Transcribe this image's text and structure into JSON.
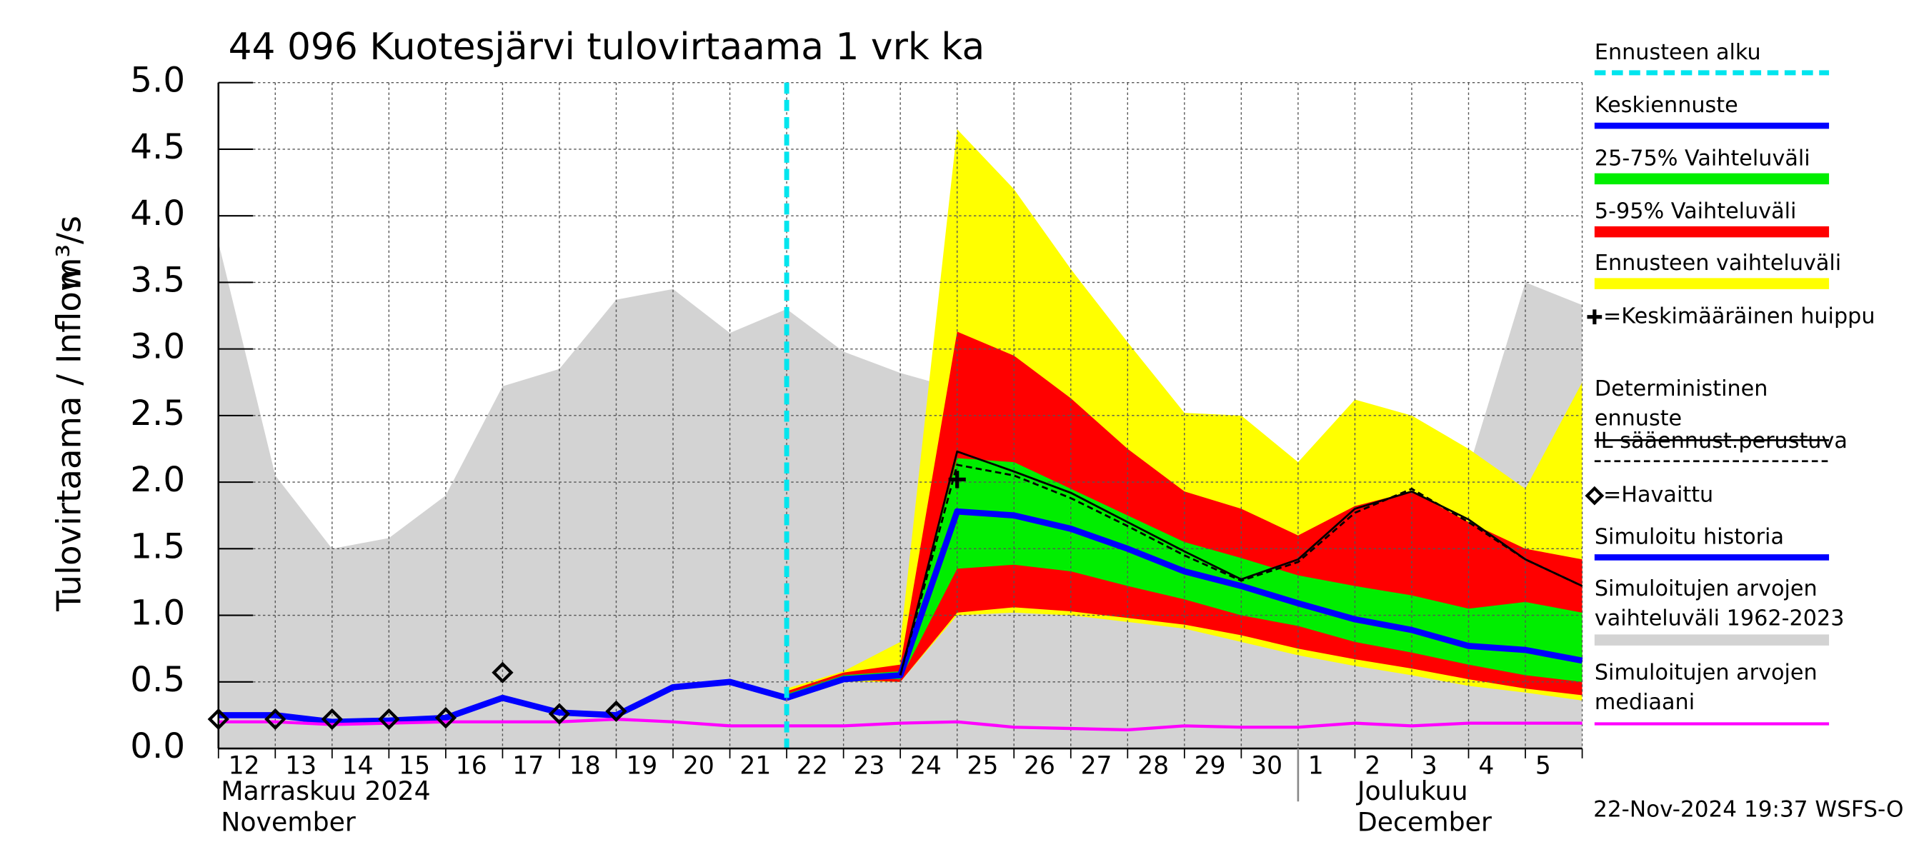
{
  "chart_data": {
    "type": "line",
    "title": "44 096 Kuotesjärvi tulovirtaama 1 vrk ka",
    "y_label": "Tulovirtaama / Inflow",
    "y_unit": "m³/s",
    "month_labels": [
      {
        "at": "12",
        "lines": [
          "Marraskuu 2024",
          "November"
        ]
      },
      {
        "at": "1",
        "lines": [
          "Joulukuu",
          "December"
        ]
      }
    ],
    "footer": "22-Nov-2024 19:37 WSFS-O",
    "categories": [
      "12",
      "13",
      "14",
      "15",
      "16",
      "17",
      "18",
      "19",
      "20",
      "21",
      "22",
      "23",
      "24",
      "25",
      "26",
      "27",
      "28",
      "29",
      "30",
      "1",
      "2",
      "3",
      "4",
      "5",
      null
    ],
    "ylim": [
      0,
      5
    ],
    "yticks": [
      {
        "value": 0,
        "label": "0.0"
      },
      0.5,
      {
        "value": 1,
        "label": "1.0"
      },
      1.5,
      {
        "value": 2,
        "label": "2.0"
      },
      2.5,
      {
        "value": 3,
        "label": "3.0"
      },
      3.5,
      {
        "value": 4,
        "label": "4.0"
      },
      4.5,
      {
        "value": 5,
        "label": "5.0"
      }
    ],
    "grid": true,
    "series": [
      {
        "name": "Ennusteen alku",
        "color": "#00e5ee",
        "kind": "vline",
        "at": "22"
      },
      {
        "name": "Keskiennuste",
        "color": "#0000ff",
        "kind": "line",
        "width": 5,
        "values": [
          null,
          null,
          null,
          null,
          null,
          null,
          null,
          null,
          null,
          null,
          0.38,
          0.52,
          0.55,
          1.78,
          1.75,
          1.65,
          1.5,
          1.33,
          1.22,
          1.09,
          0.97,
          0.89,
          0.77,
          0.74,
          0.66
        ]
      },
      {
        "name": "25-75% Vaihteluväli",
        "color": "#00ee00",
        "kind": "band",
        "upper": [
          null,
          null,
          null,
          null,
          null,
          null,
          null,
          null,
          null,
          null,
          0.41,
          0.55,
          0.58,
          2.18,
          2.15,
          1.95,
          1.75,
          1.55,
          1.43,
          1.3,
          1.22,
          1.15,
          1.05,
          1.1,
          1.02
        ],
        "lower": [
          null,
          null,
          null,
          null,
          null,
          null,
          null,
          null,
          null,
          null,
          0.39,
          0.53,
          0.52,
          1.35,
          1.38,
          1.33,
          1.22,
          1.12,
          1.0,
          0.92,
          0.8,
          0.72,
          0.63,
          0.55,
          0.5
        ]
      },
      {
        "name": "5-95% Vaihteluväli",
        "color": "#ff0000",
        "kind": "band",
        "upper": [
          null,
          null,
          null,
          null,
          null,
          null,
          null,
          null,
          null,
          null,
          0.43,
          0.57,
          0.63,
          3.13,
          2.95,
          2.63,
          2.25,
          1.93,
          1.8,
          1.6,
          1.82,
          1.93,
          1.7,
          1.5,
          1.42
        ],
        "lower": [
          null,
          null,
          null,
          null,
          null,
          null,
          null,
          null,
          null,
          null,
          0.38,
          0.52,
          0.5,
          1.02,
          1.06,
          1.03,
          0.98,
          0.93,
          0.85,
          0.75,
          0.67,
          0.6,
          0.52,
          0.45,
          0.4
        ]
      },
      {
        "name": "Ennusteen vaihteluväli",
        "color": "#ffff00",
        "kind": "band",
        "upper": [
          null,
          null,
          null,
          null,
          null,
          null,
          null,
          null,
          null,
          null,
          0.45,
          0.58,
          0.8,
          4.65,
          4.2,
          3.6,
          3.05,
          2.52,
          2.5,
          2.15,
          2.62,
          2.5,
          2.25,
          1.95,
          2.75
        ],
        "lower": [
          null,
          null,
          null,
          null,
          null,
          null,
          null,
          null,
          null,
          null,
          0.38,
          0.5,
          0.5,
          1.0,
          1.02,
          1.0,
          0.95,
          0.9,
          0.8,
          0.7,
          0.62,
          0.55,
          0.47,
          0.42,
          0.36
        ]
      },
      {
        "name": "=Keskimääräinen huippu",
        "color": "#000000",
        "kind": "cross",
        "values": [
          null,
          null,
          null,
          null,
          null,
          null,
          null,
          null,
          null,
          null,
          null,
          null,
          null,
          2.02,
          null,
          null,
          null,
          null,
          null,
          null,
          null,
          null,
          null,
          null,
          null
        ]
      },
      {
        "name": "Deterministinen ennuste",
        "color": "#000000",
        "kind": "line",
        "width": 1.6,
        "values": [
          null,
          null,
          null,
          null,
          null,
          null,
          null,
          null,
          null,
          null,
          null,
          null,
          0.55,
          2.23,
          2.08,
          1.92,
          1.7,
          1.48,
          1.27,
          1.42,
          1.8,
          1.93,
          1.72,
          1.42,
          1.22
        ]
      },
      {
        "name": "IL sääennust.perustuva",
        "color": "#000000",
        "kind": "dashed",
        "width": 1.6,
        "values": [
          null,
          null,
          null,
          null,
          null,
          null,
          null,
          null,
          null,
          null,
          null,
          null,
          0.55,
          2.13,
          2.05,
          1.88,
          1.67,
          1.45,
          1.26,
          1.4,
          1.77,
          1.95,
          1.7,
          1.42,
          1.22
        ]
      },
      {
        "name": "=Havaittu",
        "color": "#000000",
        "kind": "diamond",
        "values": [
          0.22,
          0.22,
          0.22,
          0.22,
          0.23,
          0.57,
          0.26,
          0.28,
          null,
          null,
          null,
          null,
          null,
          null,
          null,
          null,
          null,
          null,
          null,
          null,
          null,
          null,
          null,
          null,
          null
        ]
      },
      {
        "name": "Simuloitu historia",
        "color": "#0000ff",
        "kind": "line",
        "width": 5,
        "values": [
          0.25,
          0.25,
          0.2,
          0.21,
          0.23,
          0.38,
          0.27,
          0.25,
          0.46,
          0.5,
          0.38,
          null,
          null,
          null,
          null,
          null,
          null,
          null,
          null,
          null,
          null,
          null,
          null,
          null,
          null
        ]
      },
      {
        "name": "Simuloitujen arvojen vaihteluväli 1962-2023",
        "color": "#d3d3d3",
        "kind": "area",
        "values": [
          3.8,
          2.05,
          1.5,
          1.58,
          1.9,
          2.72,
          2.85,
          3.37,
          3.45,
          3.12,
          3.3,
          2.98,
          2.82,
          2.7,
          2.5,
          2.3,
          2.1,
          1.95,
          1.85,
          1.75,
          1.7,
          1.65,
          2.1,
          3.5,
          3.33
        ]
      },
      {
        "name": "Simuloitujen arvojen mediaani",
        "color": "#ff00ff",
        "kind": "line",
        "width": 2.5,
        "values": [
          0.2,
          0.2,
          0.18,
          0.19,
          0.2,
          0.2,
          0.2,
          0.22,
          0.2,
          0.17,
          0.17,
          0.17,
          0.19,
          0.2,
          0.16,
          0.15,
          0.14,
          0.17,
          0.16,
          0.16,
          0.19,
          0.17,
          0.19,
          0.19,
          0.19
        ]
      }
    ]
  }
}
